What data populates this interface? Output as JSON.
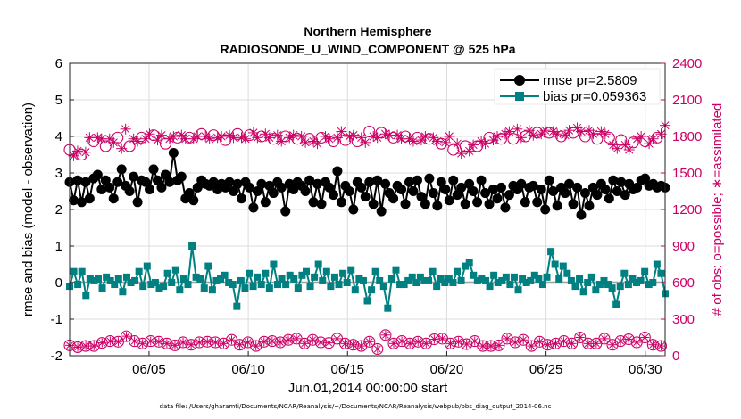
{
  "chart_data": {
    "type": "line",
    "title": [
      "Northern Hemisphere",
      "RADIOSONDE_U_WIND_COMPONENT @ 525 hPa"
    ],
    "xlabel": "Jun.01,2014 00:00:00 start",
    "ylabel": "rmse and bias (model - observation)",
    "y2label": "# of obs: o=possible; ∗=assimilated",
    "footnote": "data file: /Users/gharamti/Documents/NCAR/Reanalysis/~/Documents/NCAR/Reanalysis/webpub/obs_diag_output_2014-06.nc",
    "x_tick_labels": [
      "06/05",
      "06/10",
      "06/15",
      "06/20",
      "06/25",
      "06/30"
    ],
    "x_tick_days": [
      5,
      10,
      15,
      20,
      25,
      30
    ],
    "xlim_days": [
      1,
      31
    ],
    "ylim": [
      -2,
      6
    ],
    "y_ticks": [
      -2,
      -1,
      0,
      1,
      2,
      3,
      4,
      5,
      6
    ],
    "y2lim": [
      0,
      2400
    ],
    "y2_ticks": [
      0,
      300,
      600,
      900,
      1200,
      1500,
      1800,
      2100,
      2400
    ],
    "colors": {
      "rmse": "#000000",
      "bias": "#008080",
      "obs": "#cc0066",
      "zero": "#a0a0a0"
    },
    "series": [
      {
        "name": "rmse",
        "legend": "rmse pr=2.5809",
        "axis": "left",
        "values": [
          2.75,
          2.25,
          2.8,
          2.2,
          2.75,
          2.3,
          2.85,
          2.95,
          2.55,
          2.8,
          2.6,
          2.3,
          2.75,
          3.1,
          2.65,
          2.5,
          2.9,
          2.2,
          2.8,
          2.75,
          2.55,
          3.1,
          2.8,
          2.6,
          2.95,
          2.75,
          3.55,
          2.8,
          2.9,
          2.3,
          2.45,
          2.25,
          2.6,
          2.8,
          2.7,
          2.65,
          2.75,
          2.55,
          2.7,
          2.6,
          2.75,
          2.5,
          2.7,
          2.3,
          2.75,
          2.6,
          2.05,
          2.5,
          2.7,
          2.2,
          2.65,
          2.45,
          2.75,
          2.6,
          1.95,
          2.7,
          2.55,
          2.75,
          2.65,
          2.5,
          2.8,
          2.2,
          2.7,
          2.15,
          2.75,
          2.6,
          2.4,
          3.05,
          2.2,
          2.65,
          2.5,
          2.0,
          2.75,
          2.6,
          2.35,
          2.75,
          2.15,
          2.8,
          1.95,
          2.7,
          2.45,
          2.3,
          2.65,
          2.55,
          2.15,
          2.75,
          2.5,
          2.8,
          2.35,
          2.15,
          2.85,
          2.45,
          2.1,
          2.75,
          2.55,
          2.25,
          2.8,
          2.4,
          2.6,
          2.15,
          2.7,
          2.5,
          2.2,
          2.8,
          2.45,
          2.15,
          2.55,
          2.3,
          2.6,
          2.05,
          2.4,
          2.65,
          2.55,
          2.7,
          2.2,
          2.6,
          2.65,
          2.2,
          2.55,
          2.0,
          2.8,
          2.5,
          2.1,
          2.6,
          2.45,
          2.7,
          2.15,
          2.6,
          1.85,
          2.45,
          2.1,
          2.6,
          2.4,
          2.7,
          2.55,
          2.3,
          2.8,
          2.5,
          2.75,
          2.4,
          2.7,
          2.55,
          2.6,
          2.8,
          2.85,
          2.65,
          2.7,
          2.6,
          2.65,
          2.6
        ]
      },
      {
        "name": "bias",
        "legend": "bias pr=0.059363",
        "axis": "left",
        "values": [
          -0.1,
          0.3,
          -0.05,
          0.3,
          -0.35,
          0.1,
          0.05,
          0.1,
          -0.15,
          0.15,
          0.05,
          -0.05,
          0.1,
          -0.25,
          0.15,
          0.0,
          0.05,
          0.3,
          -0.1,
          0.45,
          -0.05,
          0.0,
          -0.15,
          -0.1,
          0.25,
          0.0,
          0.35,
          -0.2,
          0.1,
          -0.05,
          1.0,
          0.15,
          0.1,
          -0.15,
          0.45,
          -0.2,
          0.05,
          0.1,
          0.2,
          0.0,
          -0.05,
          -0.65,
          0.05,
          -0.15,
          0.25,
          -0.1,
          0.15,
          -0.05,
          0.25,
          -0.15,
          0.5,
          -0.05,
          0.1,
          -0.05,
          0.2,
          0.1,
          -0.15,
          0.2,
          0.3,
          -0.1,
          0.15,
          0.5,
          0.05,
          0.3,
          -0.1,
          0.15,
          -0.05,
          0.25,
          0.0,
          0.35,
          -0.2,
          0.1,
          0.05,
          -0.5,
          -0.2,
          0.3,
          0.05,
          -0.1,
          -0.7,
          0.1,
          0.35,
          -0.05,
          -0.05,
          0.05,
          0.15,
          0.0,
          0.15,
          0.05,
          0.05,
          0.3,
          -0.1,
          0.1,
          0.0,
          0.1,
          0.0,
          0.3,
          0.05,
          0.45,
          0.55,
          0.2,
          0.05,
          0.1,
          0.05,
          -0.1,
          0.2,
          0.0,
          0.05,
          0.15,
          -0.05,
          0.15,
          -0.2,
          0.1,
          0.0,
          0.05,
          0.2,
          0.1,
          -0.05,
          0.15,
          0.85,
          0.5,
          0.1,
          0.45,
          0.25,
          0.05,
          -0.1,
          0.1,
          -0.25,
          0.0,
          0.15,
          -0.2,
          -0.05,
          0.05,
          -0.05,
          -0.15,
          -0.6,
          -0.1,
          0.25,
          -0.05,
          0.1,
          0.0,
          0.05,
          0.3,
          -0.05,
          0.0,
          0.5,
          0.25,
          -0.3
        ]
      },
      {
        "name": "obs_possible",
        "legend": "",
        "axis": "right",
        "marker": "circle",
        "values": [
          85,
          75,
          70,
          85,
          80,
          110,
          80,
          90,
          105,
          130,
          120,
          140,
          115,
          140,
          160,
          130,
          120,
          105,
          100,
          90,
          120,
          100,
          115,
          80,
          100,
          105,
          85,
          120,
          110,
          105,
          90,
          95,
          110,
          90,
          115,
          130,
          110,
          120,
          100,
          115,
          130,
          110,
          90,
          140,
          110,
          100,
          80,
          150,
          115,
          95,
          120,
          90,
          110,
          125,
          130,
          100,
          140,
          160,
          100,
          120,
          130,
          100,
          110,
          120,
          105,
          120,
          140,
          110,
          100,
          105,
          90,
          105,
          80,
          70,
          115,
          90,
          55,
          80,
          170,
          105,
          100,
          145,
          120,
          135,
          100,
          180,
          115,
          145,
          100,
          125,
          135,
          160,
          140,
          130,
          100,
          150,
          115,
          130,
          95,
          135,
          120,
          105,
          80,
          130,
          80,
          120,
          85,
          70,
          140,
          80,
          110,
          100,
          130,
          160,
          80,
          120,
          115,
          140,
          90,
          100,
          100,
          140,
          120,
          160,
          100,
          140,
          150,
          120,
          100,
          160,
          100,
          95,
          140,
          80,
          90,
          75,
          120,
          90,
          135,
          85,
          110,
          120,
          150,
          110,
          90,
          125,
          80,
          80
        ]
      },
      {
        "name": "obs_assimilated",
        "legend": "",
        "axis": "right",
        "marker": "star",
        "values": [
          1690,
          1640,
          1680,
          1650,
          1670,
          1790,
          1760,
          1790,
          1780,
          1720,
          1780,
          1750,
          1790,
          1700,
          1860,
          1720,
          1780,
          1760,
          1790,
          1780,
          1820,
          1810,
          1770,
          1810,
          1740,
          1780,
          1800,
          1790,
          1810,
          1780,
          1790,
          1780,
          1800,
          1820,
          1800,
          1780,
          1810,
          1790,
          1800,
          1770,
          1810,
          1790,
          1820,
          1790,
          1780,
          1810,
          1830,
          1790,
          1800,
          1820,
          1790,
          1780,
          1810,
          1760,
          1800,
          1790,
          1810,
          1780,
          1800,
          1750,
          1780,
          1760,
          1740,
          1790,
          1800,
          1780,
          1760,
          1790,
          1840,
          1770,
          1800,
          1810,
          1760,
          1790,
          1750,
          1840,
          1800,
          1790,
          1830,
          1820,
          1810,
          1790,
          1810,
          1780,
          1800,
          1780,
          1760,
          1790,
          1770,
          1800,
          1780,
          1790,
          1760,
          1740,
          1750,
          1800,
          1690,
          1740,
          1660,
          1720,
          1680,
          1730,
          1720,
          1760,
          1740,
          1790,
          1770,
          1800,
          1780,
          1820,
          1840,
          1780,
          1860,
          1790,
          1800,
          1850,
          1810,
          1830,
          1820,
          1850,
          1830,
          1840,
          1820,
          1800,
          1810,
          1850,
          1830,
          1870,
          1840,
          1800,
          1850,
          1820,
          1780,
          1840,
          1820,
          1790,
          1730,
          1700,
          1770,
          1730,
          1690,
          1750,
          1780,
          1800,
          1760,
          1740,
          1780,
          1790,
          1820,
          1890
        ]
      }
    ]
  }
}
